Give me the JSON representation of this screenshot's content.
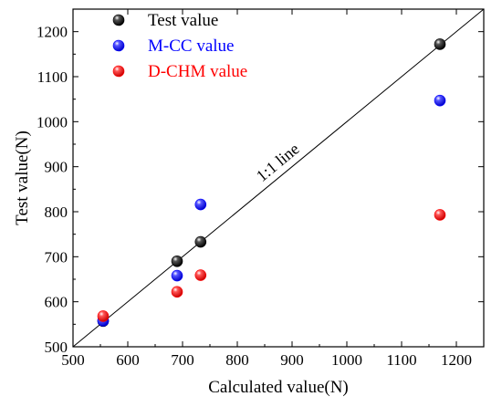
{
  "chart_data": {
    "type": "scatter",
    "title": "",
    "xlabel": "Calculated value(N)",
    "ylabel": "Test value(N)",
    "xlim": [
      500,
      1250
    ],
    "ylim": [
      500,
      1250
    ],
    "xticks": [
      500,
      600,
      700,
      800,
      900,
      1000,
      1100,
      1200
    ],
    "yticks": [
      500,
      600,
      700,
      800,
      900,
      1000,
      1100,
      1200
    ],
    "grid": false,
    "legend_position": "top-left",
    "reference_line": {
      "label": "1:1 line",
      "from": [
        500,
        500
      ],
      "to": [
        1250,
        1250
      ]
    },
    "series": [
      {
        "name": "Test value",
        "color": "#000000",
        "points": [
          [
            555,
            557
          ],
          [
            690,
            690
          ],
          [
            733,
            733
          ],
          [
            1170,
            1172
          ]
        ]
      },
      {
        "name": "M-CC value",
        "color": "#0000ff",
        "points": [
          [
            555,
            558
          ],
          [
            690,
            658
          ],
          [
            733,
            816
          ],
          [
            1170,
            1047
          ]
        ]
      },
      {
        "name": "D-CHM value",
        "color": "#ff0000",
        "points": [
          [
            555,
            568
          ],
          [
            690,
            622
          ],
          [
            733,
            659
          ],
          [
            1170,
            793
          ]
        ]
      }
    ]
  }
}
